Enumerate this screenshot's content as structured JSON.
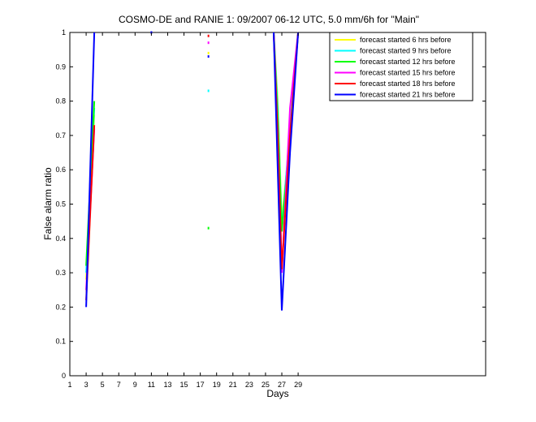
{
  "chart_data": {
    "type": "line",
    "title": "COSMO-DE and RANIE 1: 09/2007 06-12 UTC, 5.0 mm/6h for \"Main\"",
    "xlabel": "Days",
    "ylabel": "False alarm ratio",
    "xlim": [
      1,
      52
    ],
    "ylim": [
      0,
      1
    ],
    "xticks": [
      1,
      3,
      5,
      7,
      9,
      11,
      13,
      15,
      17,
      19,
      21,
      23,
      25,
      27,
      29
    ],
    "yticks": [
      0,
      0.1,
      0.2,
      0.3,
      0.4,
      0.5,
      0.6,
      0.7,
      0.8,
      0.9,
      1
    ],
    "ytick_labels": [
      "0",
      "0.1",
      "0.2",
      "0.3",
      "0.4",
      "0.5",
      "0.6",
      "0.7",
      "0.8",
      "0.9",
      "1"
    ],
    "grid": false,
    "legend_position": "top-right",
    "series": [
      {
        "name": "forecast started 6 hrs before",
        "color": "#ffff00",
        "segments": [
          [
            [
              3,
              0.28
            ],
            [
              4,
              0.76
            ]
          ],
          [
            [
              26,
              1.0
            ],
            [
              26.5,
              0.8
            ],
            [
              27,
              0.45
            ],
            [
              28,
              0.7
            ],
            [
              29,
              1.0
            ]
          ]
        ],
        "points": [
          [
            18,
            0.94
          ]
        ]
      },
      {
        "name": "forecast started 9 hrs before",
        "color": "#00ffff",
        "segments": [
          [
            [
              3,
              0.3
            ],
            [
              4,
              0.78
            ]
          ],
          [
            [
              26,
              1.0
            ],
            [
              26.5,
              0.78
            ],
            [
              27,
              0.43
            ],
            [
              28,
              0.72
            ],
            [
              29,
              1.0
            ]
          ]
        ],
        "points": [
          [
            18,
            0.83
          ]
        ]
      },
      {
        "name": "forecast started 12 hrs before",
        "color": "#00ff00",
        "segments": [
          [
            [
              3,
              0.32
            ],
            [
              4,
              0.8
            ]
          ],
          [
            [
              26,
              1.0
            ],
            [
              26.5,
              0.75
            ],
            [
              27,
              0.42
            ],
            [
              28,
              0.7
            ],
            [
              29,
              1.0
            ]
          ]
        ],
        "points": [
          [
            18,
            0.43
          ]
        ]
      },
      {
        "name": "forecast started 15 hrs before",
        "color": "#ff00ff",
        "segments": [
          [
            [
              3,
              0.25
            ],
            [
              4,
              0.72
            ]
          ],
          [
            [
              26,
              1.0
            ],
            [
              26.5,
              0.7
            ],
            [
              27,
              0.3
            ],
            [
              28,
              0.78
            ],
            [
              29,
              1.0
            ]
          ]
        ],
        "points": [
          [
            18,
            0.97
          ]
        ]
      },
      {
        "name": "forecast started 18 hrs before",
        "color": "#ff0000",
        "segments": [
          [
            [
              3,
              0.22
            ],
            [
              4,
              0.73
            ]
          ],
          [
            [
              26,
              1.0
            ],
            [
              26.5,
              0.7
            ],
            [
              27,
              0.31
            ],
            [
              28,
              0.7
            ],
            [
              29,
              1.0
            ]
          ]
        ],
        "points": [
          [
            18,
            0.99
          ]
        ]
      },
      {
        "name": "forecast started 21 hrs before",
        "color": "#0000ff",
        "segments": [
          [
            [
              3,
              0.2
            ],
            [
              4,
              1.0
            ]
          ],
          [
            [
              26,
              1.0
            ],
            [
              26.5,
              0.6
            ],
            [
              27,
              0.19
            ],
            [
              28,
              0.65
            ],
            [
              29,
              1.0
            ]
          ]
        ],
        "points": [
          [
            18,
            0.93
          ],
          [
            11,
            1.0
          ]
        ]
      }
    ]
  }
}
